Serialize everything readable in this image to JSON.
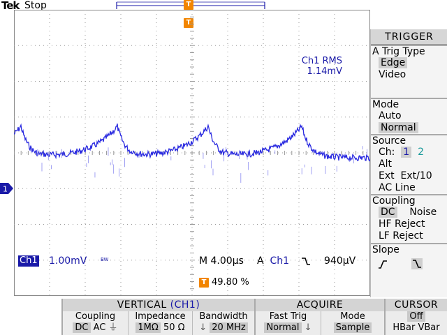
{
  "header": {
    "brand": "Tek",
    "run_state": "Stop",
    "trigger_marker": "T"
  },
  "measurement": {
    "label": "Ch1 RMS",
    "value": "1.14mV"
  },
  "channel_marker": "1",
  "readouts": {
    "ch1_label": "Ch1",
    "ch1_scale": "1.00mV",
    "bw_limit": "BW",
    "timebase": "M 4.00µs",
    "trigger_mode_letter": "A",
    "trigger_source": "Ch1",
    "trigger_slope_icon": "falling-edge-icon",
    "trigger_level": "940µV",
    "trigger_position_badge": "T",
    "trigger_position": "49.80 %"
  },
  "side_menu": {
    "title": "TRIGGER",
    "trig_type": {
      "title": "A Trig Type",
      "options": [
        "Edge",
        "Video"
      ],
      "selected": "Edge"
    },
    "mode": {
      "title": "Mode",
      "options": [
        "Auto",
        "Normal"
      ],
      "selected": "Normal"
    },
    "source": {
      "title": "Source",
      "ch_label": "Ch:",
      "ch1": "1",
      "ch2": "2",
      "alt": "Alt",
      "ext": "Ext",
      "ext10": "Ext/10",
      "acline": "AC Line"
    },
    "coupling": {
      "title": "Coupling",
      "dc": "DC",
      "noise": "Noise",
      "hf": "HF Reject",
      "lf": "LF Reject"
    },
    "slope": {
      "title": "Slope"
    }
  },
  "bottom_menu": {
    "vertical": {
      "title": "VERTICAL",
      "title_ch": "(CH1)",
      "coupling_label": "Coupling",
      "coupling_dc": "DC",
      "coupling_ac": "AC",
      "impedance_label": "Impedance",
      "impedance_1m": "1MΩ",
      "impedance_50": "50 Ω",
      "bandwidth_label": "Bandwidth",
      "bandwidth_value": "20 MHz"
    },
    "acquire": {
      "title": "ACQUIRE",
      "fast_trig_label": "Fast Trig",
      "fast_trig_value": "Normal",
      "mode_label": "Mode",
      "mode_value": "Sample"
    },
    "cursor": {
      "title": "CURSOR",
      "value": "Off",
      "options": "HBar VBar"
    }
  },
  "colors": {
    "trace": "#2a2ae0",
    "channel1": "#1a1aa8",
    "channel2": "#1a9a9a",
    "trigger_badge": "#f28500"
  }
}
